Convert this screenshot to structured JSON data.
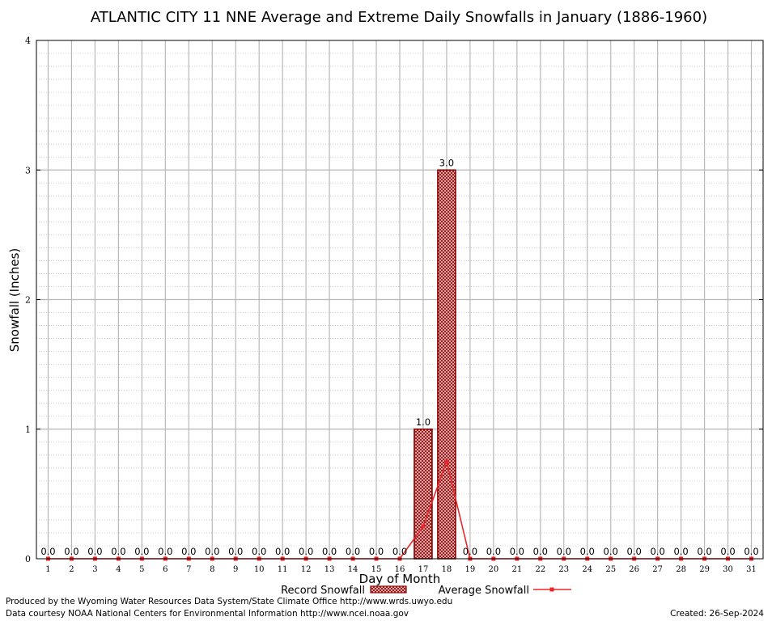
{
  "chart_data": {
    "type": "bar",
    "title": "ATLANTIC CITY 11 NNE Average and Extreme Daily Snowfalls in January (1886-1960)",
    "xlabel": "Day of Month",
    "ylabel": "Snowfall (Inches)",
    "categories": [
      "1",
      "2",
      "3",
      "4",
      "5",
      "6",
      "7",
      "8",
      "9",
      "10",
      "11",
      "12",
      "13",
      "14",
      "15",
      "16",
      "17",
      "18",
      "19",
      "20",
      "21",
      "22",
      "23",
      "24",
      "25",
      "26",
      "27",
      "28",
      "29",
      "30",
      "31"
    ],
    "ylim": [
      0,
      4
    ],
    "yticks": [
      "0",
      "1",
      "2",
      "3",
      "4"
    ],
    "grid": true,
    "series": [
      {
        "name": "Record Snowfall",
        "kind": "bar",
        "color": "#8b0000",
        "values": [
          0,
          0,
          0,
          0,
          0,
          0,
          0,
          0,
          0,
          0,
          0,
          0,
          0,
          0,
          0,
          0,
          1.0,
          3.0,
          0,
          0,
          0,
          0,
          0,
          0,
          0,
          0,
          0,
          0,
          0,
          0,
          0
        ],
        "labels": [
          "0.0",
          "0.0",
          "0.0",
          "0.0",
          "0.0",
          "0.0",
          "0.0",
          "0.0",
          "0.0",
          "0.0",
          "0.0",
          "0.0",
          "0.0",
          "0.0",
          "0.0",
          "0.0",
          "1.0",
          "3.0",
          "0.0",
          "0.0",
          "0.0",
          "0.0",
          "0.0",
          "0.0",
          "0.0",
          "0.0",
          "0.0",
          "0.0",
          "0.0",
          "0.0",
          "0.0"
        ]
      },
      {
        "name": "Average Snowfall",
        "kind": "line",
        "color": "#e8262b",
        "values": [
          0,
          0,
          0,
          0,
          0,
          0,
          0,
          0,
          0,
          0,
          0,
          0,
          0,
          0,
          0,
          0,
          0.25,
          0.75,
          0,
          0,
          0,
          0,
          0,
          0,
          0,
          0,
          0,
          0,
          0,
          0,
          0
        ]
      }
    ],
    "legend_position": "bottom"
  },
  "footer": {
    "produced_by": "Produced by the Wyoming Water Resources Data System/State Climate Office http://www.wrds.uwyo.edu",
    "data_courtesy": "Data courtesy NOAA National Centers for Environmental Information http://www.ncei.noaa.gov",
    "created": "Created: 26-Sep-2024"
  }
}
